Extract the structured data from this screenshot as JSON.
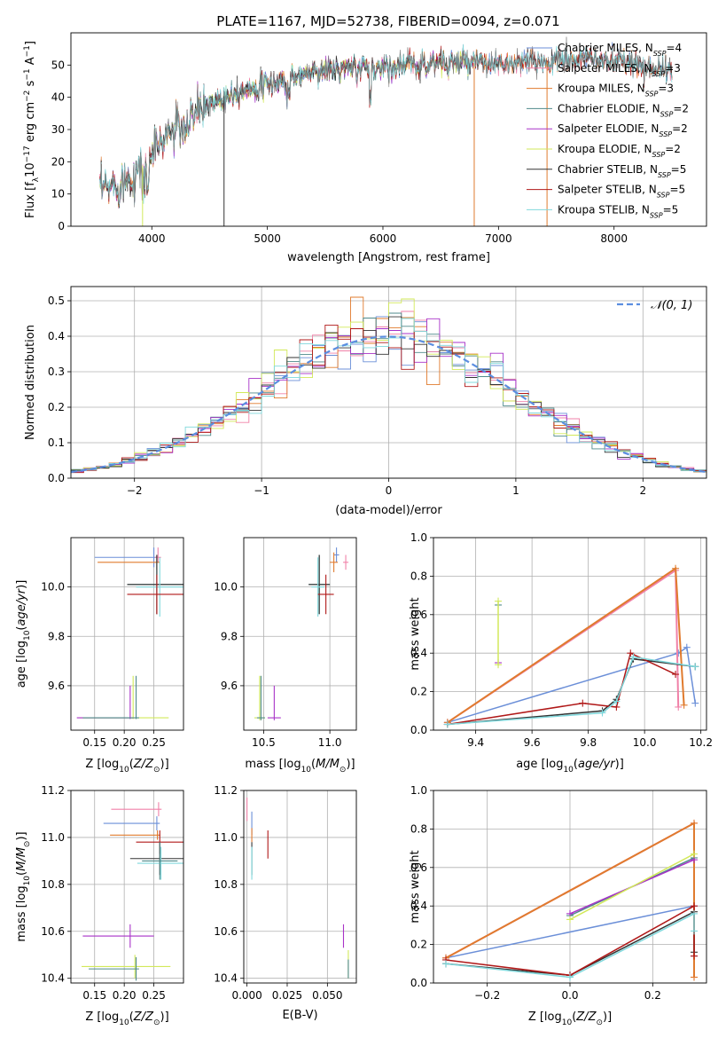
{
  "title": "PLATE=1167, MJD=52738, FIBERID=0094, z=0.071",
  "colors": {
    "Chabrier MILES": "#6b8fd8",
    "Salpeter MILES": "#f081a8",
    "Kroupa MILES": "#e07b2e",
    "Chabrier ELODIE": "#4f8a8b",
    "Salpeter ELODIE": "#a832c8",
    "Kroupa ELODIE": "#d2e95a",
    "Chabrier STELIB": "#333333",
    "Salpeter STELIB": "#b01818",
    "Kroupa STELIB": "#7fd8dc"
  },
  "legend": [
    {
      "model": "Chabrier MILES",
      "nssp": "4"
    },
    {
      "model": "Salpeter MILES",
      "nssp": "3"
    },
    {
      "model": "Kroupa MILES",
      "nssp": "3"
    },
    {
      "model": "Chabrier ELODIE",
      "nssp": "2"
    },
    {
      "model": "Salpeter ELODIE",
      "nssp": "2"
    },
    {
      "model": "Kroupa ELODIE",
      "nssp": "2"
    },
    {
      "model": "Chabrier STELIB",
      "nssp": "5"
    },
    {
      "model": "Salpeter STELIB",
      "nssp": "5"
    },
    {
      "model": "Kroupa STELIB",
      "nssp": "5"
    }
  ],
  "chart_data": [
    {
      "type": "line",
      "id": "spectrum",
      "xlabel": "wavelength [Angstrom, rest frame]",
      "ylabel": "Flux [f_λ 10^-17 erg cm^-2 s^-1 A^-1]",
      "xlim": [
        3300,
        8800
      ],
      "ylim": [
        0,
        60
      ],
      "xticks": [
        4000,
        5000,
        6000,
        7000,
        8000
      ],
      "yticks": [
        0,
        10,
        20,
        30,
        40,
        50
      ],
      "continuum": {
        "x": [
          3550,
          3700,
          3850,
          3950,
          4050,
          4150,
          4300,
          4400,
          4600,
          4800,
          5000,
          5200,
          5400,
          5600,
          5800,
          6000,
          6200,
          6400,
          6600,
          6800,
          7000,
          7200,
          7400,
          7600,
          7800,
          8000,
          8200,
          8400,
          8500
        ],
        "y": [
          11,
          13,
          16,
          20,
          25,
          29,
          32,
          36,
          40,
          42.5,
          44,
          46,
          48,
          48.5,
          49,
          49.5,
          50,
          50.5,
          51,
          50.5,
          50,
          50.5,
          51,
          51.5,
          52,
          51,
          50,
          49,
          47
        ]
      },
      "model_lines": [
        {
          "model": "Kroupa ELODIE",
          "x": 3920
        },
        {
          "model": "Chabrier STELIB",
          "x": 4625
        },
        {
          "model": "Kroupa MILES",
          "x": 6790
        },
        {
          "model": "Kroupa MILES",
          "x": 7420
        }
      ]
    },
    {
      "type": "histogram",
      "id": "residuals",
      "xlabel": "(data-model)/error",
      "ylabel": "Normed distribution",
      "xlim": [
        -2.5,
        2.5
      ],
      "ylim": [
        0,
        0.54
      ],
      "xticks": [
        -2,
        -1,
        0,
        1,
        2
      ],
      "yticks": [
        0,
        0.1,
        0.2,
        0.3,
        0.4,
        0.5
      ],
      "bin_width": 0.1,
      "reference": {
        "name": "N(0,1)",
        "label": "𝒩(0, 1)"
      },
      "peak_values": {
        "Kroupa MILES": 0.51,
        "Salpeter MILES": 0.47,
        "Kroupa STELIB": 0.45
      }
    },
    {
      "type": "scatter",
      "id": "age-vs-Z",
      "xlabel": "Z [log10(Z/Z⊙)]",
      "ylabel": "age  [log10(age/yr)]",
      "xlim": [
        0.11,
        0.3
      ],
      "ylim": [
        9.42,
        10.2
      ],
      "xticks": [
        0.15,
        0.2,
        0.25
      ],
      "yticks": [
        9.6,
        9.8,
        10.0
      ],
      "points": [
        {
          "model": "Chabrier MILES",
          "x": 0.25,
          "y": 10.12,
          "xerr": [
            0.1,
            0.005
          ],
          "yerr": [
            0.04,
            0.04
          ]
        },
        {
          "model": "Salpeter MILES",
          "x": 0.257,
          "y": 10.12,
          "xerr": [
            0.005,
            0.005
          ],
          "yerr": [
            0.02,
            0.04
          ]
        },
        {
          "model": "Kroupa MILES",
          "x": 0.255,
          "y": 10.1,
          "xerr": [
            0.1,
            0.005
          ],
          "yerr": [
            0.03,
            0.03
          ]
        },
        {
          "model": "Chabrier ELODIE",
          "x": 0.255,
          "y": 10.01,
          "xerr": [
            0.05,
            0.05
          ],
          "yerr": [
            0.12,
            0.12
          ]
        },
        {
          "model": "Chabrier STELIB",
          "x": 0.255,
          "y": 10.01,
          "xerr": [
            0.05,
            0.05
          ],
          "yerr": [
            0.12,
            0.12
          ]
        },
        {
          "model": "Kroupa STELIB",
          "x": 0.26,
          "y": 10.0,
          "xerr": [
            0.04,
            0.04
          ],
          "yerr": [
            0.12,
            0.12
          ]
        },
        {
          "model": "Salpeter STELIB",
          "x": 0.255,
          "y": 9.97,
          "xerr": [
            0.05,
            0.05
          ],
          "yerr": [
            0.08,
            0.08
          ]
        },
        {
          "model": "Kroupa ELODIE",
          "x": 0.215,
          "y": 9.47,
          "xerr": [
            0.09,
            0.06
          ],
          "yerr": [
            0.005,
            0.17
          ]
        },
        {
          "model": "Salpeter ELODIE",
          "x": 0.21,
          "y": 9.47,
          "xerr": [
            0.09,
            0.005
          ],
          "yerr": [
            0.005,
            0.13
          ]
        },
        {
          "model": "Chabrier ELODIE",
          "x": 0.22,
          "y": 9.47,
          "xerr": [
            0.09,
            0.005
          ],
          "yerr": [
            0.005,
            0.17
          ]
        }
      ]
    },
    {
      "type": "scatter",
      "id": "age-vs-mass",
      "xlabel": "mass [log10(M/M⊙)]",
      "xlim": [
        10.35,
        11.2
      ],
      "ylim": [
        9.42,
        10.2
      ],
      "xticks": [
        10.5,
        11.0
      ],
      "yticks": [
        9.6,
        9.8,
        10.0
      ],
      "points": [
        {
          "model": "Chabrier MILES",
          "x": 11.05,
          "y": 10.13,
          "xerr": [
            0.02,
            0.02
          ],
          "yerr": [
            0.03,
            0.03
          ]
        },
        {
          "model": "Salpeter MILES",
          "x": 11.12,
          "y": 10.1,
          "xerr": [
            0.02,
            0.02
          ],
          "yerr": [
            0.03,
            0.03
          ]
        },
        {
          "model": "Kroupa MILES",
          "x": 11.03,
          "y": 10.1,
          "xerr": [
            0.03,
            0.03
          ],
          "yerr": [
            0.04,
            0.04
          ]
        },
        {
          "model": "Chabrier ELODIE",
          "x": 10.92,
          "y": 10.01,
          "xerr": [
            0.08,
            0.08
          ],
          "yerr": [
            0.12,
            0.12
          ]
        },
        {
          "model": "Chabrier STELIB",
          "x": 10.92,
          "y": 10.01,
          "xerr": [
            0.08,
            0.08
          ],
          "yerr": [
            0.12,
            0.12
          ]
        },
        {
          "model": "Kroupa STELIB",
          "x": 10.91,
          "y": 10.0,
          "xerr": [
            0.05,
            0.05
          ],
          "yerr": [
            0.12,
            0.12
          ]
        },
        {
          "model": "Salpeter STELIB",
          "x": 10.97,
          "y": 9.97,
          "xerr": [
            0.06,
            0.06
          ],
          "yerr": [
            0.08,
            0.08
          ]
        },
        {
          "model": "Kroupa ELODIE",
          "x": 10.47,
          "y": 9.47,
          "xerr": [
            0.04,
            0.04
          ],
          "yerr": [
            0.01,
            0.17
          ]
        },
        {
          "model": "Salpeter ELODIE",
          "x": 10.58,
          "y": 9.47,
          "xerr": [
            0.05,
            0.05
          ],
          "yerr": [
            0.01,
            0.13
          ]
        },
        {
          "model": "Chabrier ELODIE",
          "x": 10.48,
          "y": 9.47,
          "xerr": [
            0.03,
            0.03
          ],
          "yerr": [
            0.01,
            0.17
          ]
        }
      ]
    },
    {
      "type": "line",
      "id": "weight-vs-age",
      "xlabel": "age  [log10(age/yr)]",
      "ylabel": "mass weight",
      "xlim": [
        9.25,
        10.22
      ],
      "ylim": [
        0,
        1.0
      ],
      "xticks": [
        9.4,
        9.6,
        9.8,
        10.0,
        10.2
      ],
      "yticks": [
        0.0,
        0.2,
        0.4,
        0.6,
        0.8,
        1.0
      ],
      "series": [
        {
          "model": "Chabrier MILES",
          "x": [
            9.3,
            10.12,
            10.15,
            10.18
          ],
          "y": [
            0.04,
            0.4,
            0.43,
            0.14
          ]
        },
        {
          "model": "Salpeter MILES",
          "x": [
            9.3,
            10.11,
            10.12
          ],
          "y": [
            0.04,
            0.83,
            0.12
          ]
        },
        {
          "model": "Kroupa MILES",
          "x": [
            9.3,
            10.11,
            10.14
          ],
          "y": [
            0.04,
            0.84,
            0.13
          ]
        },
        {
          "model": "Chabrier ELODIE",
          "x": [
            9.48
          ],
          "y": [
            0.65
          ]
        },
        {
          "model": "Salpeter ELODIE",
          "x": [
            9.48
          ],
          "y": [
            0.35
          ]
        },
        {
          "model": "Kroupa ELODIE",
          "x": [
            9.48,
            9.48
          ],
          "y": [
            0.34,
            0.67
          ]
        },
        {
          "model": "Chabrier STELIB",
          "x": [
            9.3,
            9.85,
            9.9,
            9.96,
            10.18
          ],
          "y": [
            0.03,
            0.1,
            0.16,
            0.37,
            0.33
          ]
        },
        {
          "model": "Salpeter STELIB",
          "x": [
            9.3,
            9.78,
            9.9,
            9.95,
            10.11
          ],
          "y": [
            0.03,
            0.14,
            0.12,
            0.4,
            0.29
          ]
        },
        {
          "model": "Kroupa STELIB",
          "x": [
            9.3,
            9.85,
            9.9,
            9.96,
            10.18
          ],
          "y": [
            0.03,
            0.09,
            0.15,
            0.38,
            0.33
          ]
        }
      ]
    },
    {
      "type": "scatter",
      "id": "mass-vs-Z",
      "xlabel": "Z [log10(Z/Z⊙)]",
      "ylabel": "mass [log10(M/M⊙)]",
      "xlim": [
        0.11,
        0.3
      ],
      "ylim": [
        10.38,
        11.2
      ],
      "xticks": [
        0.15,
        0.2,
        0.25
      ],
      "yticks": [
        10.4,
        10.6,
        10.8,
        11.0,
        11.2
      ],
      "points": [
        {
          "model": "Salpeter MILES",
          "x": 0.258,
          "y": 11.12,
          "xerr": [
            0.08,
            0.005
          ],
          "yerr": [
            0.03,
            0.03
          ]
        },
        {
          "model": "Chabrier MILES",
          "x": 0.255,
          "y": 11.06,
          "xerr": [
            0.09,
            0.005
          ],
          "yerr": [
            0.03,
            0.03
          ]
        },
        {
          "model": "Kroupa MILES",
          "x": 0.256,
          "y": 11.01,
          "xerr": [
            0.08,
            0.005
          ],
          "yerr": [
            0.02,
            0.02
          ]
        },
        {
          "model": "Salpeter STELIB",
          "x": 0.26,
          "y": 10.98,
          "xerr": [
            0.04,
            0.04
          ],
          "yerr": [
            0.05,
            0.05
          ]
        },
        {
          "model": "Chabrier STELIB",
          "x": 0.26,
          "y": 10.91,
          "xerr": [
            0.05,
            0.05
          ],
          "yerr": [
            0.07,
            0.07
          ]
        },
        {
          "model": "Kroupa STELIB",
          "x": 0.262,
          "y": 10.89,
          "xerr": [
            0.04,
            0.04
          ],
          "yerr": [
            0.07,
            0.07
          ]
        },
        {
          "model": "Chabrier ELODIE",
          "x": 0.26,
          "y": 10.9,
          "xerr": [
            0.03,
            0.03
          ],
          "yerr": [
            0.08,
            0.08
          ]
        },
        {
          "model": "Salpeter ELODIE",
          "x": 0.21,
          "y": 10.58,
          "xerr": [
            0.08,
            0.04
          ],
          "yerr": [
            0.05,
            0.05
          ]
        },
        {
          "model": "Kroupa ELODIE",
          "x": 0.218,
          "y": 10.45,
          "xerr": [
            0.09,
            0.06
          ],
          "yerr": [
            0.05,
            0.05
          ]
        },
        {
          "model": "Chabrier ELODIE",
          "x": 0.22,
          "y": 10.44,
          "xerr": [
            0.08,
            0.005
          ],
          "yerr": [
            0.05,
            0.05
          ]
        }
      ]
    },
    {
      "type": "scatter",
      "id": "mass-vs-ebv",
      "xlabel": "E(B-V)",
      "xlim": [
        -0.002,
        0.068
      ],
      "ylim": [
        10.38,
        11.2
      ],
      "xticks": [
        0.0,
        0.025,
        0.05
      ],
      "yticks": [
        10.4,
        10.6,
        10.8,
        11.0,
        11.2
      ],
      "points": [
        {
          "model": "Salpeter MILES",
          "x": 0.0,
          "y": 11.12,
          "xerr": [
            0,
            0
          ],
          "yerr": [
            0.05,
            0.05
          ]
        },
        {
          "model": "Chabrier MILES",
          "x": 0.003,
          "y": 11.06,
          "xerr": [
            0,
            0
          ],
          "yerr": [
            0.05,
            0.05
          ]
        },
        {
          "model": "Kroupa MILES",
          "x": 0.003,
          "y": 11.01,
          "xerr": [
            0,
            0
          ],
          "yerr": [
            0.03,
            0.03
          ]
        },
        {
          "model": "Salpeter STELIB",
          "x": 0.013,
          "y": 10.97,
          "xerr": [
            0,
            0
          ],
          "yerr": [
            0.06,
            0.06
          ]
        },
        {
          "model": "Chabrier STELIB",
          "x": 0.003,
          "y": 10.91,
          "xerr": [
            0,
            0
          ],
          "yerr": [
            0.07,
            0.07
          ]
        },
        {
          "model": "Kroupa STELIB",
          "x": 0.003,
          "y": 10.89,
          "xerr": [
            0,
            0
          ],
          "yerr": [
            0.07,
            0.07
          ]
        },
        {
          "model": "Salpeter ELODIE",
          "x": 0.06,
          "y": 10.58,
          "xerr": [
            0,
            0
          ],
          "yerr": [
            0.05,
            0.05
          ]
        },
        {
          "model": "Kroupa ELODIE",
          "x": 0.063,
          "y": 10.46,
          "xerr": [
            0,
            0
          ],
          "yerr": [
            0.06,
            0.06
          ]
        },
        {
          "model": "Chabrier ELODIE",
          "x": 0.063,
          "y": 10.44,
          "xerr": [
            0,
            0
          ],
          "yerr": [
            0.04,
            0.04
          ]
        }
      ]
    },
    {
      "type": "line",
      "id": "weight-vs-Z",
      "xlabel": "Z [log10(Z/Z⊙)]",
      "ylabel": "mass weight",
      "xlim": [
        -0.33,
        0.33
      ],
      "ylim": [
        0,
        1.0
      ],
      "xticks": [
        -0.2,
        0.0,
        0.2
      ],
      "yticks": [
        0.0,
        0.2,
        0.4,
        0.6,
        0.8,
        1.0
      ],
      "series": [
        {
          "model": "Chabrier MILES",
          "x": [
            -0.3,
            0.3,
            0.3
          ],
          "y": [
            0.13,
            0.4,
            0.14
          ]
        },
        {
          "model": "Salpeter MILES",
          "x": [
            -0.3,
            0.3,
            0.3
          ],
          "y": [
            0.13,
            0.83,
            0.03
          ]
        },
        {
          "model": "Kroupa MILES",
          "x": [
            -0.3,
            0.3,
            0.3
          ],
          "y": [
            0.13,
            0.83,
            0.03
          ]
        },
        {
          "model": "Chabrier ELODIE",
          "x": [
            0.0,
            0.3
          ],
          "y": [
            0.35,
            0.65
          ]
        },
        {
          "model": "Salpeter ELODIE",
          "x": [
            0.0,
            0.3
          ],
          "y": [
            0.36,
            0.64
          ]
        },
        {
          "model": "Kroupa ELODIE",
          "x": [
            0.0,
            0.3
          ],
          "y": [
            0.33,
            0.67
          ]
        },
        {
          "model": "Chabrier STELIB",
          "x": [
            -0.3,
            0.0,
            0.3,
            0.3
          ],
          "y": [
            0.1,
            0.04,
            0.37,
            0.16
          ]
        },
        {
          "model": "Salpeter STELIB",
          "x": [
            -0.3,
            0.0,
            0.3,
            0.3
          ],
          "y": [
            0.12,
            0.04,
            0.4,
            0.14
          ]
        },
        {
          "model": "Kroupa STELIB",
          "x": [
            -0.3,
            0.0,
            0.3,
            0.3
          ],
          "y": [
            0.1,
            0.03,
            0.36,
            0.27
          ]
        }
      ]
    }
  ]
}
